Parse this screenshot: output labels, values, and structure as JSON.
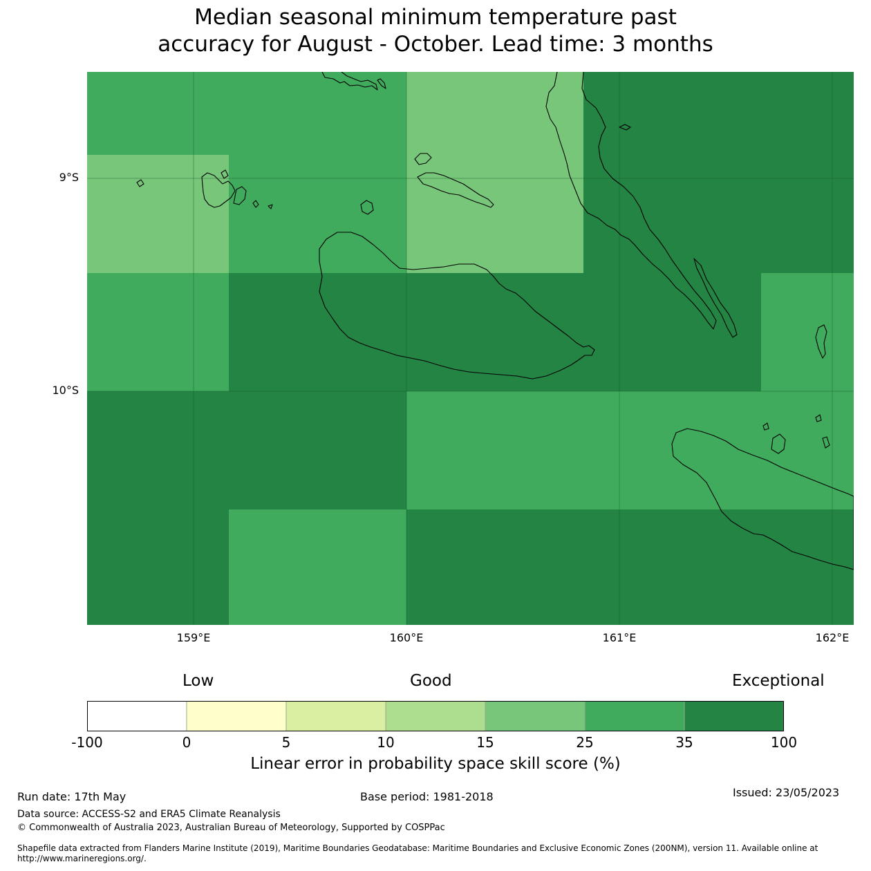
{
  "title": {
    "line1": "Median seasonal minimum temperature past",
    "line2": "accuracy for August - October. Lead time: 3 months"
  },
  "map": {
    "lat_labels": [
      "9°S",
      "10°S"
    ],
    "lon_labels": [
      "159°E",
      "160°E",
      "161°E",
      "162°E"
    ],
    "cell_colors": {
      "very_high": "#238443",
      "high": "#41ab5d",
      "good": "#78c679"
    },
    "grid_cells": [
      {
        "name": "cell-nw-top",
        "category": "high"
      },
      {
        "name": "cell-n-center",
        "category": "good"
      },
      {
        "name": "cell-ne",
        "category": "very_high"
      },
      {
        "name": "cell-w-good",
        "category": "good"
      },
      {
        "name": "cell-center-high",
        "category": "high"
      },
      {
        "name": "cell-w-mid",
        "category": "high"
      },
      {
        "name": "cell-center-vhigh",
        "category": "very_high"
      },
      {
        "name": "cell-e-mid",
        "category": "high"
      },
      {
        "name": "cell-sw",
        "category": "very_high"
      },
      {
        "name": "cell-se-upper",
        "category": "high"
      },
      {
        "name": "cell-s-center",
        "category": "high"
      },
      {
        "name": "cell-se-lower",
        "category": "very_high"
      }
    ]
  },
  "legend": {
    "categories": {
      "low": "Low",
      "good": "Good",
      "exceptional": "Exceptional"
    },
    "ticks": [
      "-100",
      "0",
      "5",
      "10",
      "15",
      "25",
      "35",
      "100"
    ],
    "colors": [
      "#ffffff",
      "#ffffcc",
      "#d9f0a3",
      "#addd8e",
      "#78c679",
      "#41ab5d",
      "#238443"
    ],
    "title": "Linear error in probability space skill score (%)"
  },
  "footer": {
    "run_date": "Run date: 17th May",
    "base_period": "Base period: 1981-2018",
    "issued": "Issued: 23/05/2023",
    "data_source": "Data source: ACCESS-S2 and ERA5 Climate Reanalysis",
    "copyright": "© Commonwealth of Australia 2023, Australian Bureau of Meteorology, Supported by COSPPac",
    "shapefile_line1": "Shapefile data extracted from Flanders Marine Institute (2019), Maritime Boundaries Geodatabase: Maritime Boundaries and Exclusive Economic Zones (200NM), version 11. Available online at",
    "shapefile_line2": "http://www.marineregions.org/."
  }
}
